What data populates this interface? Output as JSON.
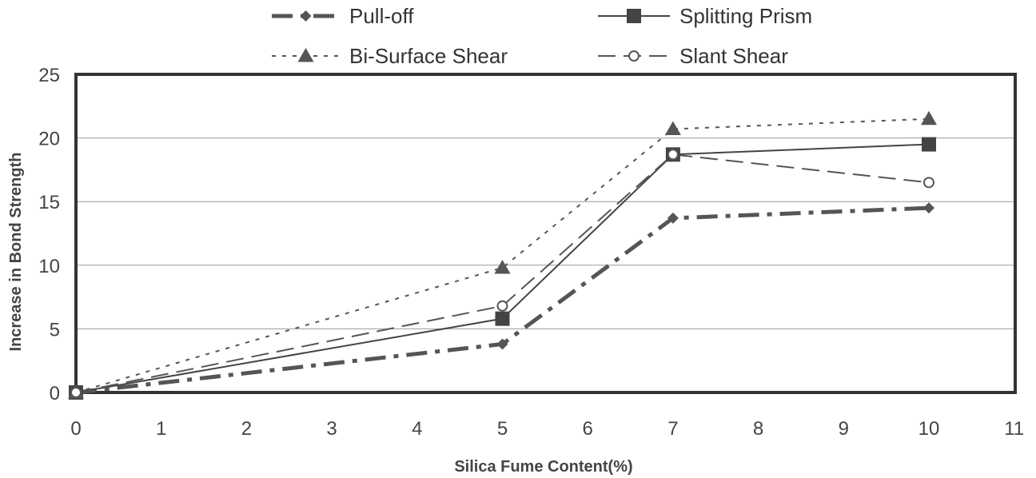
{
  "chart_data": {
    "type": "line",
    "xlabel": "Silica Fume Content(%)",
    "ylabel": "Increase in Bond Strength",
    "xlim": [
      0,
      11
    ],
    "ylim": [
      0,
      25
    ],
    "xticks": [
      "0",
      "1",
      "2",
      "3",
      "4",
      "5",
      "6",
      "7",
      "8",
      "9",
      "10",
      "11"
    ],
    "yticks": [
      "0",
      "5",
      "10",
      "15",
      "20",
      "25"
    ],
    "grid": "horizontal",
    "legend_position": "top",
    "x": [
      0,
      5,
      7,
      10
    ],
    "series": [
      {
        "name": "Pull-off",
        "values": [
          0,
          3.8,
          13.7,
          14.5
        ],
        "marker": "diamond",
        "line": "dash-dot-thick",
        "color": "#555555"
      },
      {
        "name": "Splitting Prism",
        "values": [
          0,
          5.8,
          18.7,
          19.5
        ],
        "marker": "square",
        "line": "solid",
        "color": "#444444"
      },
      {
        "name": "Bi-Surface Shear",
        "values": [
          0,
          9.8,
          20.7,
          21.5
        ],
        "marker": "triangle",
        "line": "dotted",
        "color": "#555555"
      },
      {
        "name": "Slant Shear",
        "values": [
          0,
          6.8,
          18.7,
          16.5
        ],
        "marker": "circle-open",
        "line": "dashed",
        "color": "#555555"
      }
    ]
  }
}
